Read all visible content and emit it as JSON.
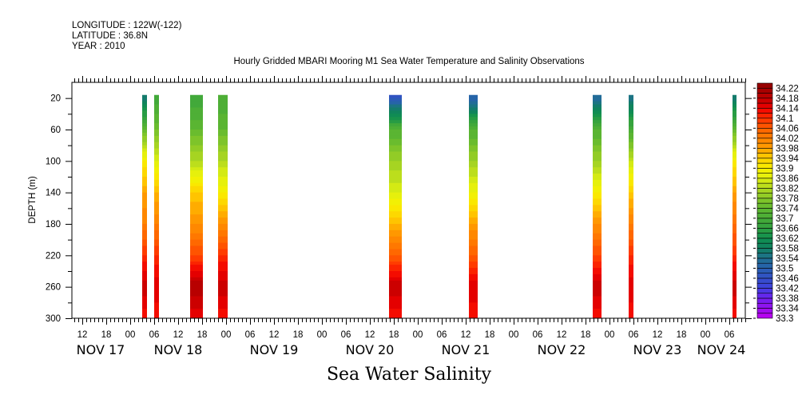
{
  "header": {
    "longitude": "LONGITUDE : 122W(-122)",
    "latitude": "LATITUDE : 36.8N",
    "year": "YEAR : 2010"
  },
  "chart_data": {
    "type": "heatmap",
    "title": "Hourly Gridded MBARI Mooring M1 Sea Water Temperature and Salinity Observations",
    "xlabel": "Sea Water Salinity",
    "ylabel": "DEPTH (m)",
    "x_units": "hours since NOV 17 2010 00:00",
    "xlim": [
      9.4,
      178
    ],
    "ylim": [
      300,
      0
    ],
    "y_ticks": [
      20,
      60,
      100,
      140,
      180,
      220,
      260,
      300
    ],
    "x_hour_labels": [
      "00",
      "06",
      "12",
      "18"
    ],
    "day_labels": [
      "NOV 17",
      "NOV 18",
      "NOV 19",
      "NOV 20",
      "NOV 21",
      "NOV 22",
      "NOV 23",
      "NOV 24"
    ],
    "profile_depths": [
      20,
      60,
      100,
      140,
      180,
      220,
      260,
      300
    ],
    "profiles": [
      {
        "start": 27,
        "end": 28.2,
        "values": [
          33.56,
          33.74,
          33.9,
          33.98,
          34.02,
          34.1,
          34.18,
          34.12
        ]
      },
      {
        "start": 30,
        "end": 31.2,
        "values": [
          33.68,
          33.76,
          33.86,
          33.96,
          34.02,
          34.1,
          34.16,
          34.12
        ]
      },
      {
        "start": 39,
        "end": 42.2,
        "values": [
          33.68,
          33.74,
          33.82,
          33.94,
          34.0,
          34.08,
          34.2,
          34.14
        ]
      },
      {
        "start": 46,
        "end": 48.4,
        "values": [
          33.7,
          33.74,
          33.82,
          33.9,
          34.0,
          34.1,
          34.18,
          34.12
        ]
      },
      {
        "start": 88.8,
        "end": 92,
        "values": [
          33.48,
          33.72,
          33.8,
          33.86,
          33.96,
          34.06,
          34.18,
          34.12
        ]
      },
      {
        "start": 108.8,
        "end": 111,
        "values": [
          33.5,
          33.72,
          33.8,
          33.88,
          33.98,
          34.06,
          34.16,
          34.12
        ]
      },
      {
        "start": 139.8,
        "end": 142,
        "values": [
          33.52,
          33.72,
          33.8,
          33.9,
          34.0,
          34.08,
          34.18,
          34.12
        ]
      },
      {
        "start": 148.8,
        "end": 150,
        "values": [
          33.54,
          33.7,
          33.84,
          33.94,
          34.02,
          34.1,
          34.16,
          34.12
        ]
      },
      {
        "start": 174.8,
        "end": 175.8,
        "values": [
          33.56,
          33.74,
          33.9,
          33.98,
          34.04,
          34.1,
          34.18,
          34.12
        ]
      }
    ],
    "colorbar": {
      "min": 33.3,
      "max": 34.24,
      "step": 0.02,
      "labels": [
        "34.22",
        "34.18",
        "34.14",
        "34.1",
        "34.06",
        "34.02",
        "33.98",
        "33.94",
        "33.9",
        "33.86",
        "33.82",
        "33.78",
        "33.74",
        "33.7",
        "33.66",
        "33.62",
        "33.58",
        "33.54",
        "33.5",
        "33.46",
        "33.42",
        "33.38",
        "33.34",
        "33.3"
      ],
      "anchors": [
        [
          33.3,
          "#c000f0"
        ],
        [
          33.38,
          "#7020f0"
        ],
        [
          33.42,
          "#4040e0"
        ],
        [
          33.5,
          "#2860b0"
        ],
        [
          33.54,
          "#207090"
        ],
        [
          33.58,
          "#108060"
        ],
        [
          33.62,
          "#109050"
        ],
        [
          33.66,
          "#30a040"
        ],
        [
          33.74,
          "#60b830"
        ],
        [
          33.82,
          "#b0d820"
        ],
        [
          33.86,
          "#e0f010"
        ],
        [
          33.9,
          "#f8f000"
        ],
        [
          33.94,
          "#ffd000"
        ],
        [
          33.98,
          "#ffa000"
        ],
        [
          34.06,
          "#ff6000"
        ],
        [
          34.1,
          "#ff3000"
        ],
        [
          34.14,
          "#f00000"
        ],
        [
          34.18,
          "#c00000"
        ],
        [
          34.24,
          "#900000"
        ]
      ]
    }
  }
}
